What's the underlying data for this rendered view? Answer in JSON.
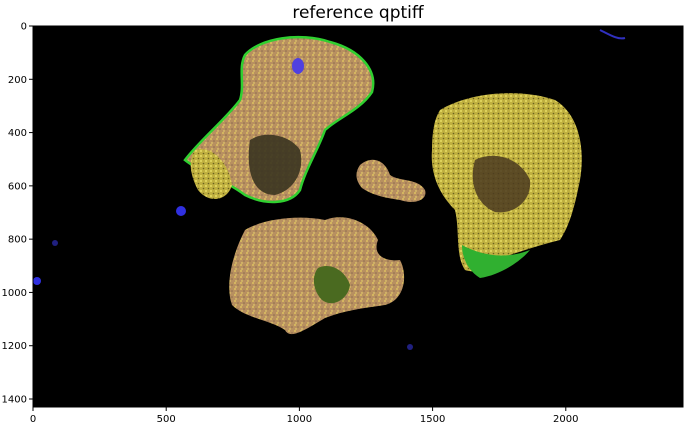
{
  "figure": {
    "title": "reference qptiff",
    "image_description_tissue_colors": [
      "#e8d060",
      "#c8a070",
      "#30d030",
      "#5040e0"
    ],
    "background": "#000000"
  },
  "axes": {
    "x_ticks": [
      0,
      500,
      1000,
      1500,
      2000
    ],
    "y_ticks": [
      0,
      200,
      400,
      600,
      800,
      1000,
      1200,
      1400
    ],
    "xlim": [
      0,
      2440
    ],
    "ylim": [
      1430,
      0
    ]
  }
}
